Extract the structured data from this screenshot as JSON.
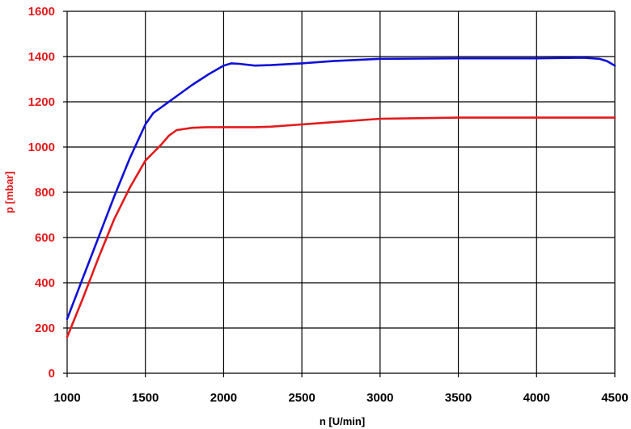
{
  "chart_data": {
    "type": "line",
    "title": "",
    "xlabel": "n [U/min]",
    "ylabel": "p [mbar]",
    "xlim": [
      1000,
      4500
    ],
    "ylim": [
      0,
      1600
    ],
    "grid": true,
    "x_ticks": [
      "1000",
      "1500",
      "2000",
      "2500",
      "3000",
      "3500",
      "4000",
      "4500"
    ],
    "y_ticks": [
      "0",
      "200",
      "400",
      "600",
      "800",
      "1000",
      "1200",
      "1400",
      "1600"
    ],
    "colors": {
      "ylabel": "#e31a1c",
      "ytick": "#e31a1c",
      "xtick": "#000000",
      "blue": "#1010d8",
      "red": "#e31a1c"
    },
    "series": [
      {
        "color": "#1010d8",
        "x": [
          1000,
          1100,
          1200,
          1300,
          1400,
          1500,
          1550,
          1600,
          1700,
          1800,
          1900,
          2000,
          2050,
          2100,
          2200,
          2300,
          2500,
          2700,
          3000,
          3500,
          4000,
          4300,
          4400,
          4450,
          4500
        ],
        "y": [
          240,
          420,
          600,
          780,
          950,
          1100,
          1150,
          1175,
          1225,
          1275,
          1320,
          1360,
          1370,
          1368,
          1360,
          1362,
          1370,
          1380,
          1390,
          1392,
          1392,
          1395,
          1390,
          1380,
          1360
        ]
      },
      {
        "color": "#e31a1c",
        "x": [
          1000,
          1100,
          1200,
          1300,
          1400,
          1500,
          1550,
          1600,
          1650,
          1700,
          1800,
          1900,
          2000,
          2200,
          2300,
          2500,
          2700,
          3000,
          3500,
          4000,
          4500
        ],
        "y": [
          160,
          330,
          510,
          680,
          820,
          940,
          975,
          1010,
          1050,
          1075,
          1085,
          1088,
          1088,
          1088,
          1090,
          1100,
          1110,
          1125,
          1130,
          1130,
          1130
        ]
      }
    ]
  }
}
